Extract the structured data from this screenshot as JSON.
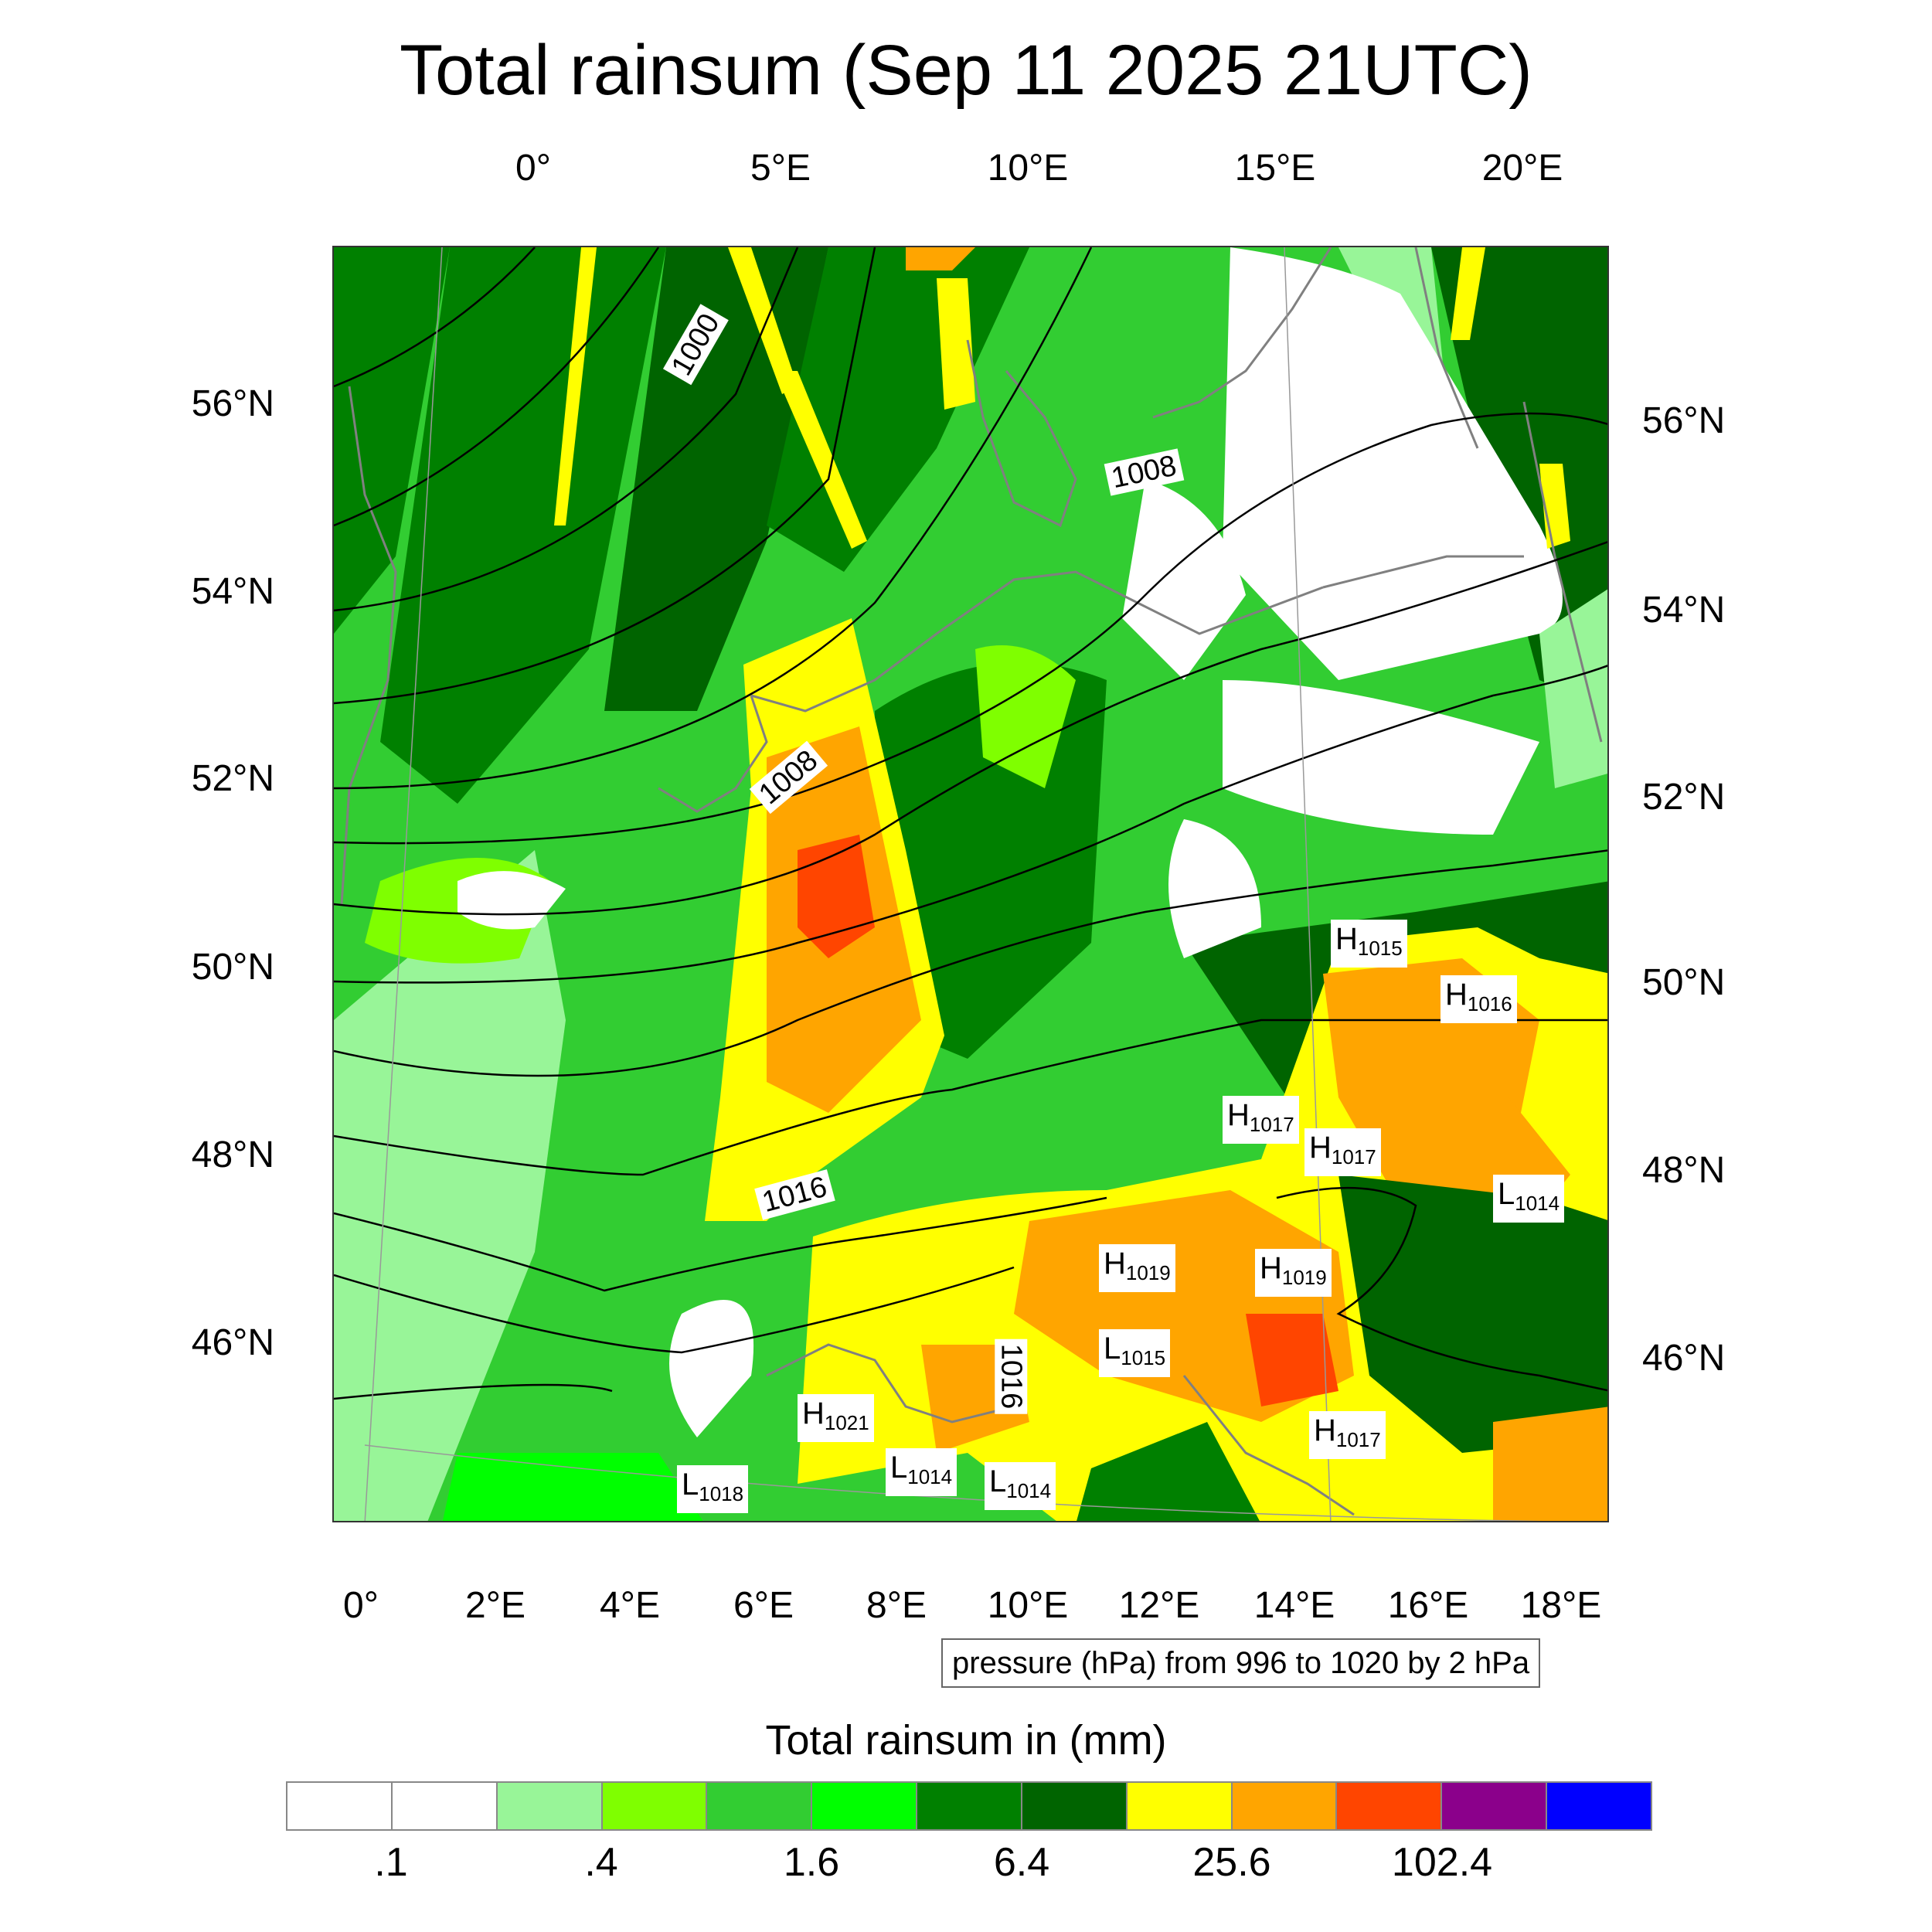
{
  "title": "Total rainsum (Sep 11 2025 21UTC)",
  "map": {
    "top_lon_labels": [
      "0°",
      "5°E",
      "10°E",
      "15°E",
      "20°E"
    ],
    "bottom_lon_labels": [
      "0°",
      "2°E",
      "4°E",
      "6°E",
      "8°E",
      "10°E",
      "12°E",
      "14°E",
      "16°E",
      "18°E"
    ],
    "left_lat_labels": [
      "56°N",
      "54°N",
      "52°N",
      "50°N",
      "48°N",
      "46°N"
    ],
    "right_lat_labels": [
      "56°N",
      "54°N",
      "52°N",
      "50°N",
      "48°N",
      "46°N"
    ],
    "isobar_labels": [
      "1000",
      "1008",
      "1008",
      "1016",
      "1016"
    ],
    "pressure_systems": [
      {
        "type": "H",
        "value": "1015"
      },
      {
        "type": "H",
        "value": "1016"
      },
      {
        "type": "H",
        "value": "1017"
      },
      {
        "type": "H",
        "value": "1017"
      },
      {
        "type": "L",
        "value": "1014"
      },
      {
        "type": "H",
        "value": "1019"
      },
      {
        "type": "H",
        "value": "1019"
      },
      {
        "type": "L",
        "value": "1015"
      },
      {
        "type": "H",
        "value": "1021"
      },
      {
        "type": "L",
        "value": "1014"
      },
      {
        "type": "L",
        "value": "1014"
      },
      {
        "type": "L",
        "value": "1018"
      },
      {
        "type": "H",
        "value": "1017"
      }
    ],
    "colors": {
      "lightgreen": "#98f598",
      "lime": "#7fff00",
      "green": "#32cd32",
      "brightgreen": "#00ff00",
      "darkgreen": "#008000",
      "forest": "#006400",
      "yellow": "#ffff00",
      "orange": "#ffa500",
      "red": "#ff4500",
      "coast": "#808080",
      "isobar": "#000000"
    }
  },
  "pressure_note": "pressure (hPa) from 996 to 1020 by 2 hPa",
  "colorbar": {
    "title": "Total rainsum in (mm)",
    "colors": [
      "#ffffff",
      "#ffffff",
      "#98f598",
      "#7fff00",
      "#32cd32",
      "#00ff00",
      "#008000",
      "#006400",
      "#ffff00",
      "#ffa500",
      "#ff4500",
      "#8b008b",
      "#0000ff"
    ],
    "tick_labels": [
      ".1",
      ".4",
      "1.6",
      "6.4",
      "25.6",
      "102.4"
    ]
  }
}
